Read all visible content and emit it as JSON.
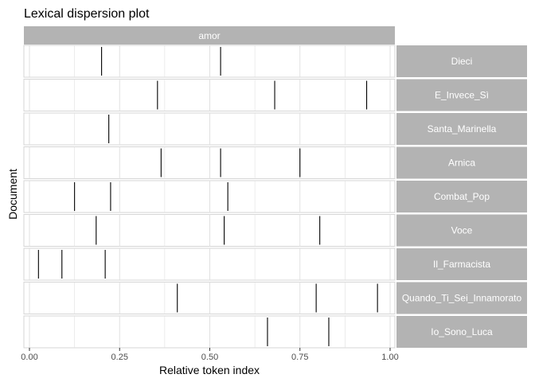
{
  "chart_data": {
    "type": "lexical-dispersion",
    "title": "Lexical dispersion plot",
    "xlabel": "Relative token index",
    "ylabel": "Document",
    "facet": "amor",
    "xlim": [
      0,
      1
    ],
    "x_ticks": [
      "0.00",
      "0.25",
      "0.50",
      "0.75",
      "1.00"
    ],
    "grid": true,
    "documents": [
      {
        "name": "Dieci",
        "positions": [
          0.2,
          0.53
        ]
      },
      {
        "name": "E_Invece_Sì",
        "positions": [
          0.355,
          0.68,
          0.935
        ]
      },
      {
        "name": "Santa_Marinella",
        "positions": [
          0.22
        ]
      },
      {
        "name": "Arnica",
        "positions": [
          0.365,
          0.53,
          0.75
        ]
      },
      {
        "name": "Combat_Pop",
        "positions": [
          0.125,
          0.225,
          0.55
        ]
      },
      {
        "name": "Voce",
        "positions": [
          0.185,
          0.54,
          0.805
        ]
      },
      {
        "name": "Il_Farmacista",
        "positions": [
          0.025,
          0.09,
          0.21
        ]
      },
      {
        "name": "Quando_Ti_Sei_Innamorato",
        "positions": [
          0.41,
          0.795,
          0.965
        ]
      },
      {
        "name": "Io_Sono_Luca",
        "positions": [
          0.66,
          0.83
        ]
      }
    ]
  },
  "colors": {
    "strip": "#b3b3b3",
    "grid": "#e0e0e0",
    "mark": "#000000",
    "panel_border": "#d6d6d6"
  }
}
